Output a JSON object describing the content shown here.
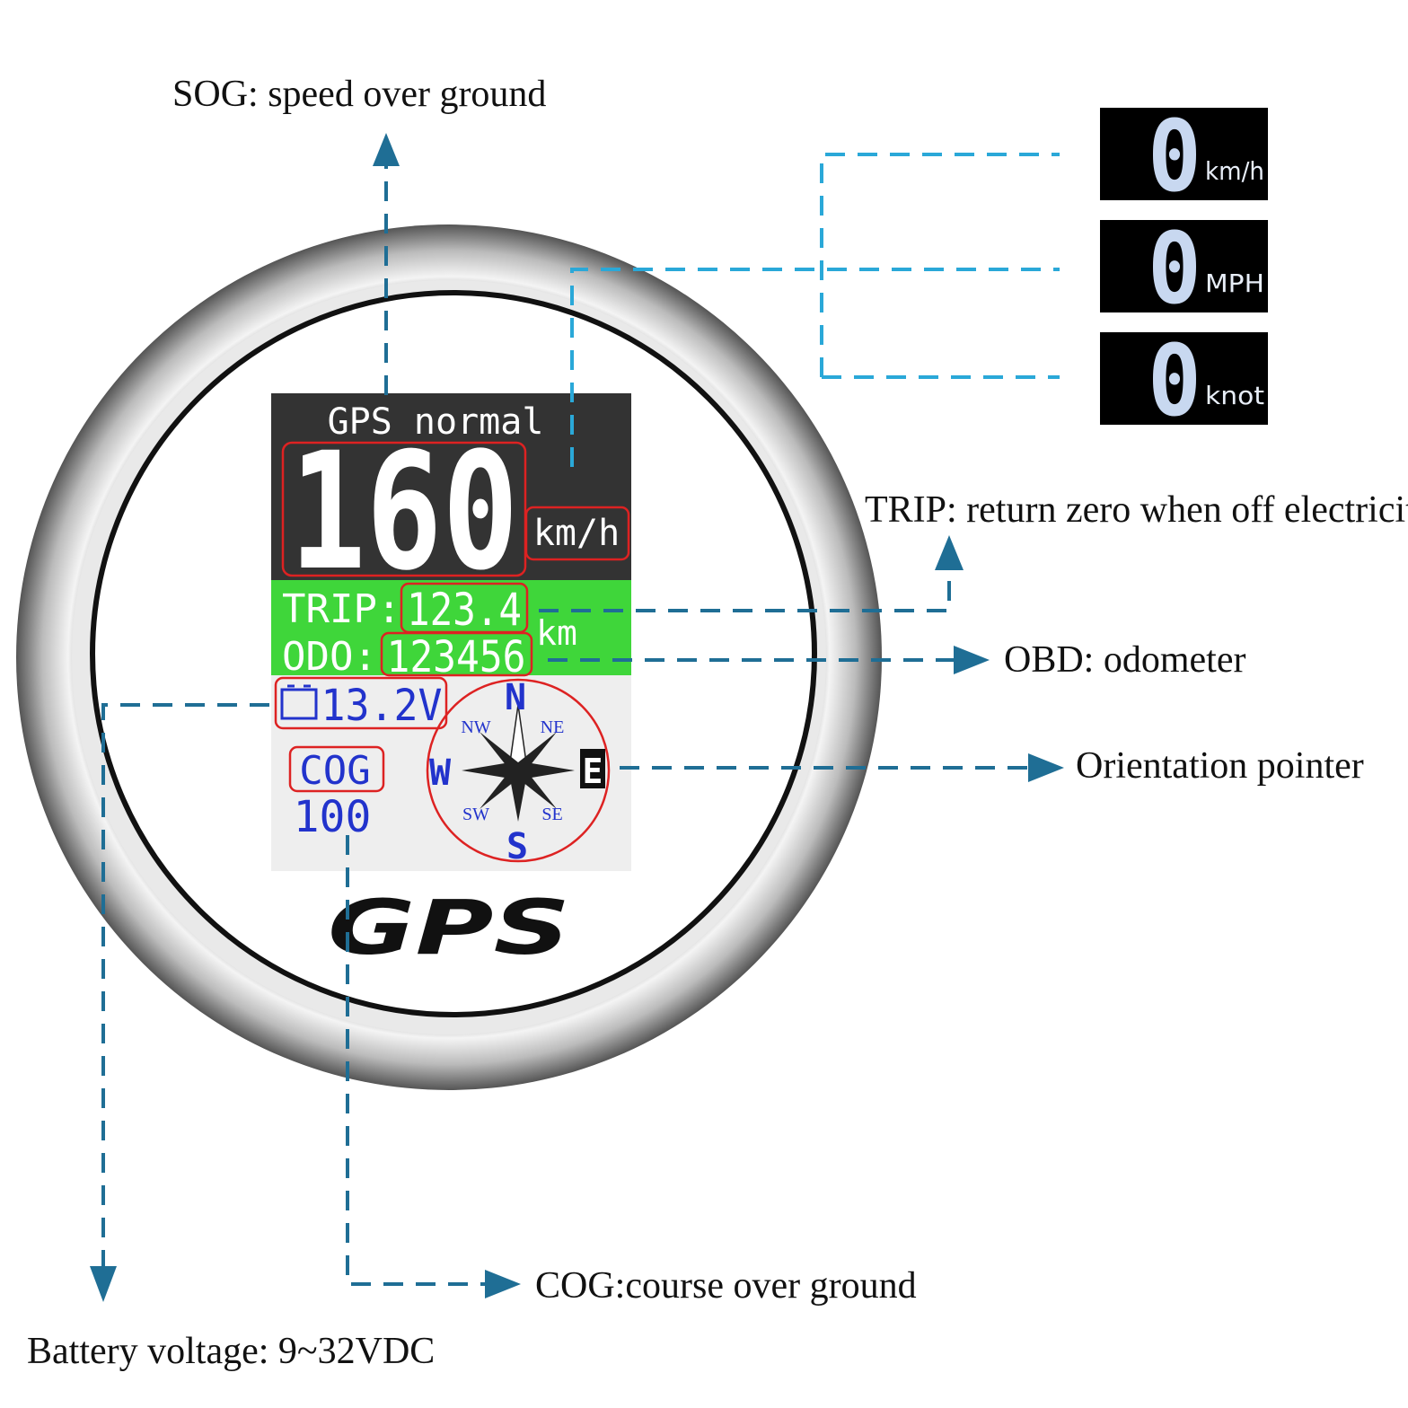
{
  "callouts": {
    "sog": "SOG: speed over ground",
    "trip": "TRIP: return zero when off electricity",
    "odo": "OBD: odometer",
    "orientation": "Orientation pointer",
    "cog": "COG:course over ground",
    "battery": "Battery voltage: 9~32VDC"
  },
  "display": {
    "status": "GPS normal",
    "speed": "160",
    "speed_unit": "km/h",
    "trip_label": "TRIP:",
    "trip": "123.4",
    "distance_unit": "km",
    "odo_label": "ODO:",
    "odo": "123456",
    "voltage": "13.2V",
    "cog_label": "COG",
    "cog": "100",
    "compass": {
      "n": "N",
      "s": "S",
      "e": "E",
      "w": "W",
      "nw": "NW",
      "ne": "NE",
      "sw": "SW",
      "se": "SE"
    }
  },
  "logo": "GPS",
  "unit_options": [
    {
      "digit": "0",
      "unit": "km/h"
    },
    {
      "digit": "0",
      "unit": "MPH"
    },
    {
      "digit": "0",
      "unit": "knot"
    }
  ]
}
